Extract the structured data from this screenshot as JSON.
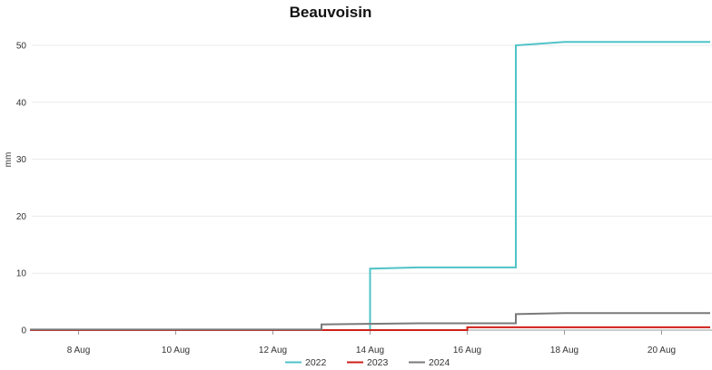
{
  "chart_data": {
    "type": "line",
    "step": true,
    "title": "Beauvoisin",
    "ylabel": "mm",
    "xlabel": "",
    "ylim": [
      0,
      52
    ],
    "yticks": [
      0,
      10,
      20,
      30,
      40,
      50
    ],
    "xlim": [
      "2024-08-07",
      "2024-08-21"
    ],
    "xticks": [
      {
        "date": "2024-08-08",
        "label": "8 Aug"
      },
      {
        "date": "2024-08-10",
        "label": "10 Aug"
      },
      {
        "date": "2024-08-12",
        "label": "12 Aug"
      },
      {
        "date": "2024-08-14",
        "label": "14 Aug"
      },
      {
        "date": "2024-08-16",
        "label": "16 Aug"
      },
      {
        "date": "2024-08-18",
        "label": "18 Aug"
      },
      {
        "date": "2024-08-20",
        "label": "20 Aug"
      }
    ],
    "grid": true,
    "legend_position": "bottom",
    "series": [
      {
        "name": "2022",
        "color": "#4fc3c7",
        "points": [
          {
            "x": "2024-08-07",
            "y": 0
          },
          {
            "x": "2024-08-14",
            "y": 0
          },
          {
            "x": "2024-08-14",
            "y": 10.8
          },
          {
            "x": "2024-08-15",
            "y": 11.0
          },
          {
            "x": "2024-08-17",
            "y": 11.0
          },
          {
            "x": "2024-08-17",
            "y": 50.0
          },
          {
            "x": "2024-08-18",
            "y": 50.6
          },
          {
            "x": "2024-08-21",
            "y": 50.6
          }
        ]
      },
      {
        "name": "2023",
        "color": "#d0201a",
        "points": [
          {
            "x": "2024-08-07",
            "y": 0
          },
          {
            "x": "2024-08-16",
            "y": 0
          },
          {
            "x": "2024-08-16",
            "y": 0.5
          },
          {
            "x": "2024-08-21",
            "y": 0.5
          }
        ]
      },
      {
        "name": "2024",
        "color": "#7a7a7a",
        "points": [
          {
            "x": "2024-08-07",
            "y": 0.1
          },
          {
            "x": "2024-08-13",
            "y": 0.1
          },
          {
            "x": "2024-08-13",
            "y": 1.0
          },
          {
            "x": "2024-08-15",
            "y": 1.2
          },
          {
            "x": "2024-08-17",
            "y": 1.2
          },
          {
            "x": "2024-08-17",
            "y": 2.8
          },
          {
            "x": "2024-08-18",
            "y": 3.0
          },
          {
            "x": "2024-08-21",
            "y": 3.0
          }
        ]
      }
    ]
  }
}
